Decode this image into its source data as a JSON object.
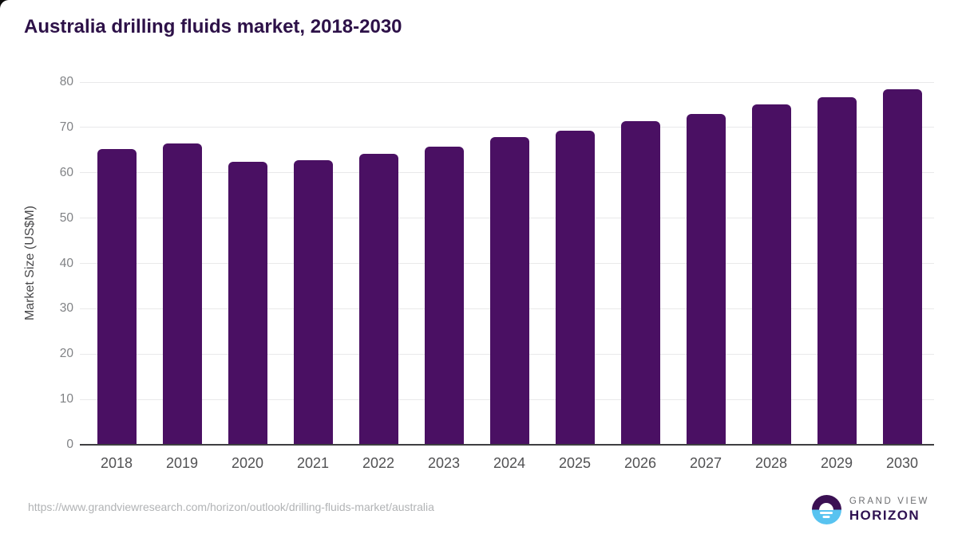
{
  "chart_data": {
    "type": "bar",
    "title": "Australia drilling fluids market, 2018-2030",
    "categories": [
      "2018",
      "2019",
      "2020",
      "2021",
      "2022",
      "2023",
      "2024",
      "2025",
      "2026",
      "2027",
      "2028",
      "2029",
      "2030"
    ],
    "values": [
      65.2,
      66.4,
      62.5,
      62.7,
      64.1,
      65.8,
      67.9,
      69.3,
      71.3,
      73.0,
      75.0,
      76.6,
      78.5
    ],
    "xlabel": "",
    "ylabel": "Market Size (US$M)",
    "ylim": [
      0,
      80
    ],
    "yticks": [
      0,
      10,
      20,
      30,
      40,
      50,
      60,
      70,
      80
    ],
    "grid": "horizontal",
    "legend": "none",
    "bar_color": "#4a1063"
  },
  "footer": {
    "source_url": "https://www.grandviewresearch.com/horizon/outlook/drilling-fluids-market/australia",
    "logo": {
      "top": "GRAND VIEW",
      "bottom": "HORIZON"
    }
  },
  "colors": {
    "bar": "#4a1063",
    "title_text": "#2d1148",
    "axis_line": "#3f3f41",
    "gridline": "#e9e9ea",
    "y_tick_text": "#808285",
    "x_tick_text": "#515153",
    "url_text": "#b1b3b5",
    "logo_blue": "#58c3f0",
    "logo_purple": "#3b1053"
  }
}
